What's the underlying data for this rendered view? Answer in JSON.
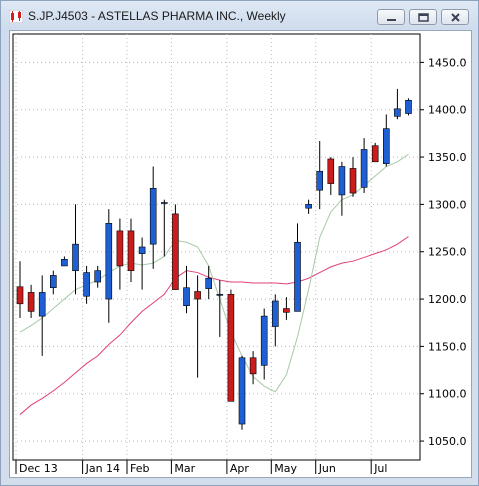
{
  "window": {
    "title": "S.JP.J4503 - ASTELLAS PHARMA INC., Weekly",
    "icon": "candlestick-chart-icon",
    "buttons": [
      "minimize-icon",
      "maximize-icon",
      "close-icon"
    ]
  },
  "chart_data": {
    "type": "candlestick",
    "symbol": "S.JP.J4503",
    "period": "Weekly",
    "ylim": [
      1030,
      1480
    ],
    "y_ticks": [
      1050,
      1100,
      1150,
      1200,
      1250,
      1300,
      1350,
      1400,
      1450
    ],
    "y_tick_labels": [
      "1050.0",
      "1100.0",
      "1150.0",
      "1200.0",
      "1250.0",
      "1300.0",
      "1350.0",
      "1400.0",
      "1450.0"
    ],
    "x_labels": [
      {
        "label": "Dec 13",
        "bar": 0
      },
      {
        "label": "Jan 14",
        "bar": 6
      },
      {
        "label": "Feb",
        "bar": 10
      },
      {
        "label": "Mar",
        "bar": 14
      },
      {
        "label": "Apr",
        "bar": 19
      },
      {
        "label": "May",
        "bar": 23
      },
      {
        "label": "Jun",
        "bar": 27
      },
      {
        "label": "Jul",
        "bar": 32
      }
    ],
    "grid": true,
    "colors": {
      "up": "#1f5fd4",
      "down": "#cc1b1b",
      "sma_short": "#a8c8a8",
      "sma_long": "#e0407a"
    },
    "candles": [
      {
        "o": 1213,
        "h": 1240,
        "l": 1180,
        "c": 1195
      },
      {
        "o": 1207,
        "h": 1215,
        "l": 1180,
        "c": 1187
      },
      {
        "o": 1182,
        "h": 1225,
        "l": 1140,
        "c": 1207
      },
      {
        "o": 1212,
        "h": 1230,
        "l": 1205,
        "c": 1225
      },
      {
        "o": 1235,
        "h": 1245,
        "l": 1235,
        "c": 1242
      },
      {
        "o": 1230,
        "h": 1300,
        "l": 1205,
        "c": 1258
      },
      {
        "o": 1203,
        "h": 1235,
        "l": 1195,
        "c": 1228
      },
      {
        "o": 1218,
        "h": 1235,
        "l": 1212,
        "c": 1230
      },
      {
        "o": 1200,
        "h": 1295,
        "l": 1175,
        "c": 1280
      },
      {
        "o": 1272,
        "h": 1285,
        "l": 1210,
        "c": 1235
      },
      {
        "o": 1272,
        "h": 1285,
        "l": 1218,
        "c": 1230
      },
      {
        "o": 1248,
        "h": 1265,
        "l": 1210,
        "c": 1255
      },
      {
        "o": 1258,
        "h": 1340,
        "l": 1232,
        "c": 1317
      },
      {
        "o": 1302,
        "h": 1305,
        "l": 1245,
        "c": 1302
      },
      {
        "o": 1290,
        "h": 1300,
        "l": 1210,
        "c": 1210
      },
      {
        "o": 1193,
        "h": 1235,
        "l": 1185,
        "c": 1212
      },
      {
        "o": 1208,
        "h": 1225,
        "l": 1117,
        "c": 1200
      },
      {
        "o": 1211,
        "h": 1235,
        "l": 1200,
        "c": 1222
      },
      {
        "o": 1205,
        "h": 1220,
        "l": 1160,
        "c": 1205
      },
      {
        "o": 1205,
        "h": 1210,
        "l": 1092,
        "c": 1092
      },
      {
        "o": 1068,
        "h": 1140,
        "l": 1062,
        "c": 1138
      },
      {
        "o": 1138,
        "h": 1145,
        "l": 1110,
        "c": 1121
      },
      {
        "o": 1130,
        "h": 1190,
        "l": 1115,
        "c": 1182
      },
      {
        "o": 1171,
        "h": 1205,
        "l": 1150,
        "c": 1198
      },
      {
        "o": 1190,
        "h": 1202,
        "l": 1178,
        "c": 1186
      },
      {
        "o": 1187,
        "h": 1280,
        "l": 1187,
        "c": 1260
      },
      {
        "o": 1296,
        "h": 1305,
        "l": 1290,
        "c": 1300
      },
      {
        "o": 1315,
        "h": 1367,
        "l": 1295,
        "c": 1335
      },
      {
        "o": 1348,
        "h": 1350,
        "l": 1310,
        "c": 1322
      },
      {
        "o": 1310,
        "h": 1345,
        "l": 1288,
        "c": 1340
      },
      {
        "o": 1338,
        "h": 1350,
        "l": 1308,
        "c": 1312
      },
      {
        "o": 1318,
        "h": 1370,
        "l": 1312,
        "c": 1358
      },
      {
        "o": 1362,
        "h": 1365,
        "l": 1345,
        "c": 1345
      },
      {
        "o": 1343,
        "h": 1395,
        "l": 1340,
        "c": 1380
      },
      {
        "o": 1393,
        "h": 1422,
        "l": 1390,
        "c": 1401
      },
      {
        "o": 1396,
        "h": 1412,
        "l": 1394,
        "c": 1410
      }
    ],
    "sma_short": [
      1165,
      1172,
      1180,
      1190,
      1200,
      1210,
      1215,
      1220,
      1228,
      1235,
      1238,
      1236,
      1238,
      1245,
      1262,
      1260,
      1255,
      1235,
      1200,
      1165,
      1140,
      1118,
      1108,
      1102,
      1120,
      1160,
      1210,
      1265,
      1292,
      1305,
      1310,
      1320,
      1330,
      1340,
      1345,
      1353
    ],
    "sma_long": [
      1078,
      1088,
      1095,
      1103,
      1112,
      1122,
      1132,
      1140,
      1152,
      1162,
      1175,
      1187,
      1196,
      1205,
      1222,
      1230,
      1228,
      1223,
      1220,
      1218,
      1218,
      1217,
      1217,
      1217,
      1216,
      1218,
      1222,
      1228,
      1234,
      1238,
      1240,
      1244,
      1248,
      1252,
      1258,
      1266
    ]
  }
}
